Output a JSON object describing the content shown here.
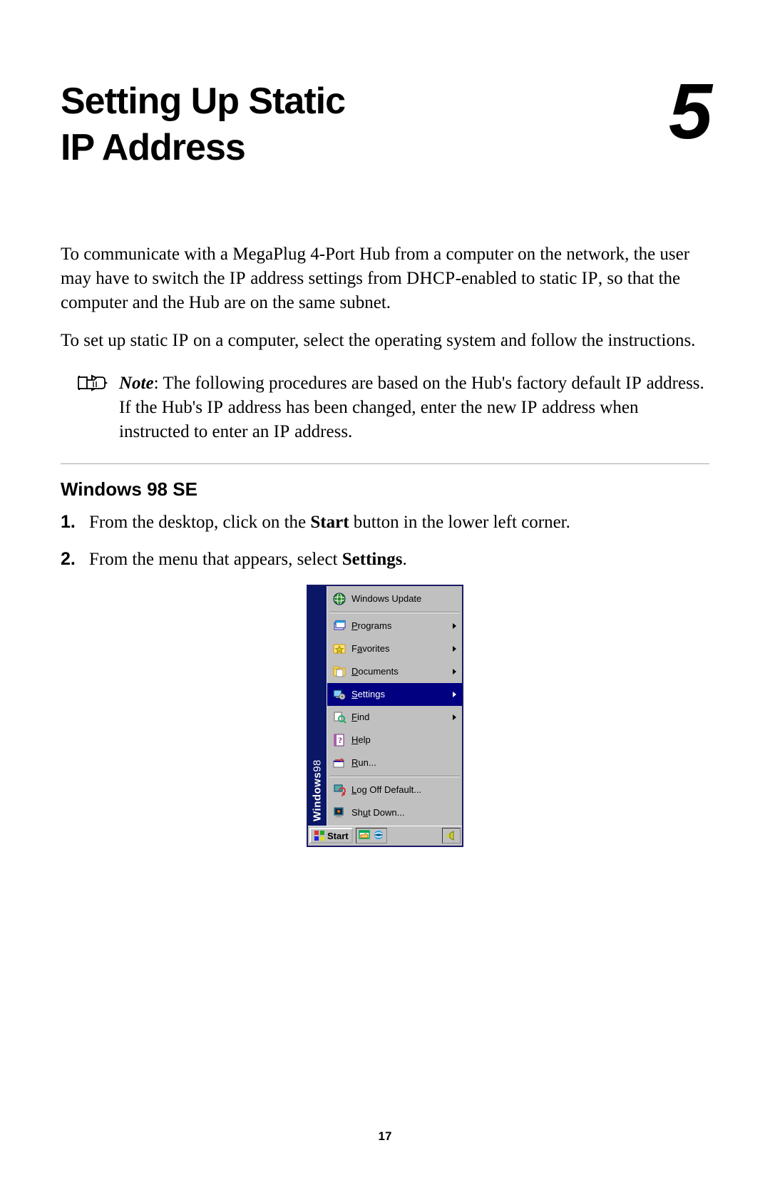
{
  "chapter": {
    "title_line1": "Setting Up Static",
    "title_line2": "IP Address",
    "number": "5"
  },
  "paragraph1": {
    "pre": "To communicate with a MegaPlug 4-Port Hub from a computer on the network, the user may have to switch the ",
    "sc1": "IP",
    "mid1": " address settings from ",
    "sc2": "DHCP",
    "mid2": "-enabled to static ",
    "sc3": "IP",
    "post": ", so that the computer and the Hub are on the same subnet."
  },
  "paragraph2": {
    "pre": "To set up static ",
    "sc1": "IP",
    "post": " on a computer, select the operating system and follow the instructions."
  },
  "note": {
    "label": "Note",
    "t1": ": The following procedures are based on the Hub's factory default ",
    "sc1": "IP",
    "t2": " address. If the Hub's ",
    "sc2": "IP",
    "t3": " address has been changed, enter the new ",
    "sc3": "IP",
    "t4": " address when instructed to enter an ",
    "sc4": "IP",
    "t5": " address."
  },
  "section_heading": "Windows 98 SE",
  "steps": [
    {
      "num": "1.",
      "pre": "From the desktop, click on the ",
      "bold": "Start",
      "post": " button in the lower left corner."
    },
    {
      "num": "2.",
      "pre": "From the menu that appears, select ",
      "bold": "Settings",
      "post": "."
    }
  ],
  "startmenu": {
    "sidebar_brand": "Windows",
    "sidebar_ver": "98",
    "colors": {
      "menu_bg": "#c0c0c0",
      "sidebar_bg": "#0a1666",
      "highlight_bg": "#000080",
      "highlight_fg": "#ffffff",
      "border": "#1a1a66"
    },
    "items": [
      {
        "icon": "globe",
        "label": "Windows Update",
        "accel_index": -1,
        "has_submenu": false,
        "selected": false
      },
      {
        "sep": true
      },
      {
        "icon": "programs",
        "label": "Programs",
        "accel_index": 0,
        "has_submenu": true,
        "selected": false
      },
      {
        "icon": "favorites",
        "label": "Favorites",
        "accel_index": 1,
        "has_submenu": true,
        "selected": false
      },
      {
        "icon": "documents",
        "label": "Documents",
        "accel_index": 0,
        "has_submenu": true,
        "selected": false
      },
      {
        "icon": "settings",
        "label": "Settings",
        "accel_index": 0,
        "has_submenu": true,
        "selected": true
      },
      {
        "icon": "find",
        "label": "Find",
        "accel_index": 0,
        "has_submenu": true,
        "selected": false
      },
      {
        "icon": "help",
        "label": "Help",
        "accel_index": 0,
        "has_submenu": false,
        "selected": false
      },
      {
        "icon": "run",
        "label": "Run...",
        "accel_index": 0,
        "has_submenu": false,
        "selected": false
      },
      {
        "sep": true
      },
      {
        "icon": "logoff",
        "label": "Log Off Default...",
        "accel_index": 0,
        "has_submenu": false,
        "selected": false
      },
      {
        "icon": "shutdown",
        "label": "Shut Down...",
        "accel_index": 2,
        "has_submenu": false,
        "selected": false
      }
    ],
    "taskbar": {
      "start_label": "Start",
      "quicklaunch": [
        "desktop",
        "ie"
      ],
      "tray": [
        "clock"
      ]
    }
  },
  "page_number": "17"
}
